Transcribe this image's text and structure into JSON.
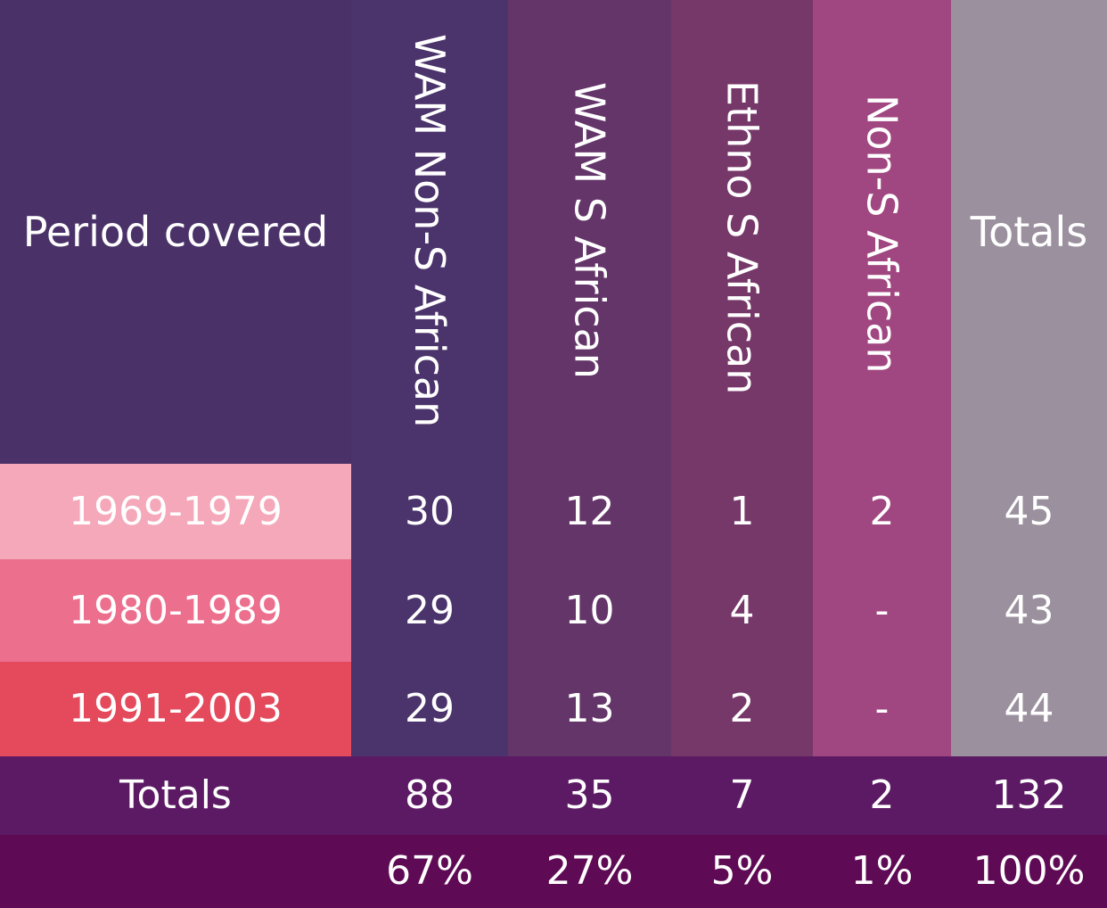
{
  "chart_data": {
    "type": "table",
    "columns": [
      "Period covered",
      "WAM Non-S African",
      "WAM S African",
      "Ethno S African",
      "Non-S African",
      "Totals"
    ],
    "rows": [
      {
        "period": "1969-1979",
        "values": [
          "30",
          "12",
          "1",
          "2",
          "45"
        ]
      },
      {
        "period": "1980-1989",
        "values": [
          "29",
          "10",
          "4",
          "-",
          "43"
        ]
      },
      {
        "period": "1991-2003",
        "values": [
          "29",
          "13",
          "2",
          "-",
          "44"
        ]
      }
    ],
    "totals": {
      "label": "Totals",
      "values": [
        "88",
        "35",
        "7",
        "2",
        "132"
      ]
    },
    "percentages": [
      "67%",
      "27%",
      "5%",
      "1%",
      "100%"
    ]
  },
  "colors": {
    "header_period_bg": "#4a3268",
    "col_wam_non_s": "#4b336b",
    "col_wam_s": "#643569",
    "col_ethno": "#763769",
    "col_non_s": "#a04680",
    "col_totals": "#9b919e",
    "row_1969": "#f4a8b9",
    "row_1980": "#ec6f8d",
    "row_1991": "#e44a5c",
    "totals_row": "#5c1a64",
    "pct_row": "#5e0a55"
  }
}
